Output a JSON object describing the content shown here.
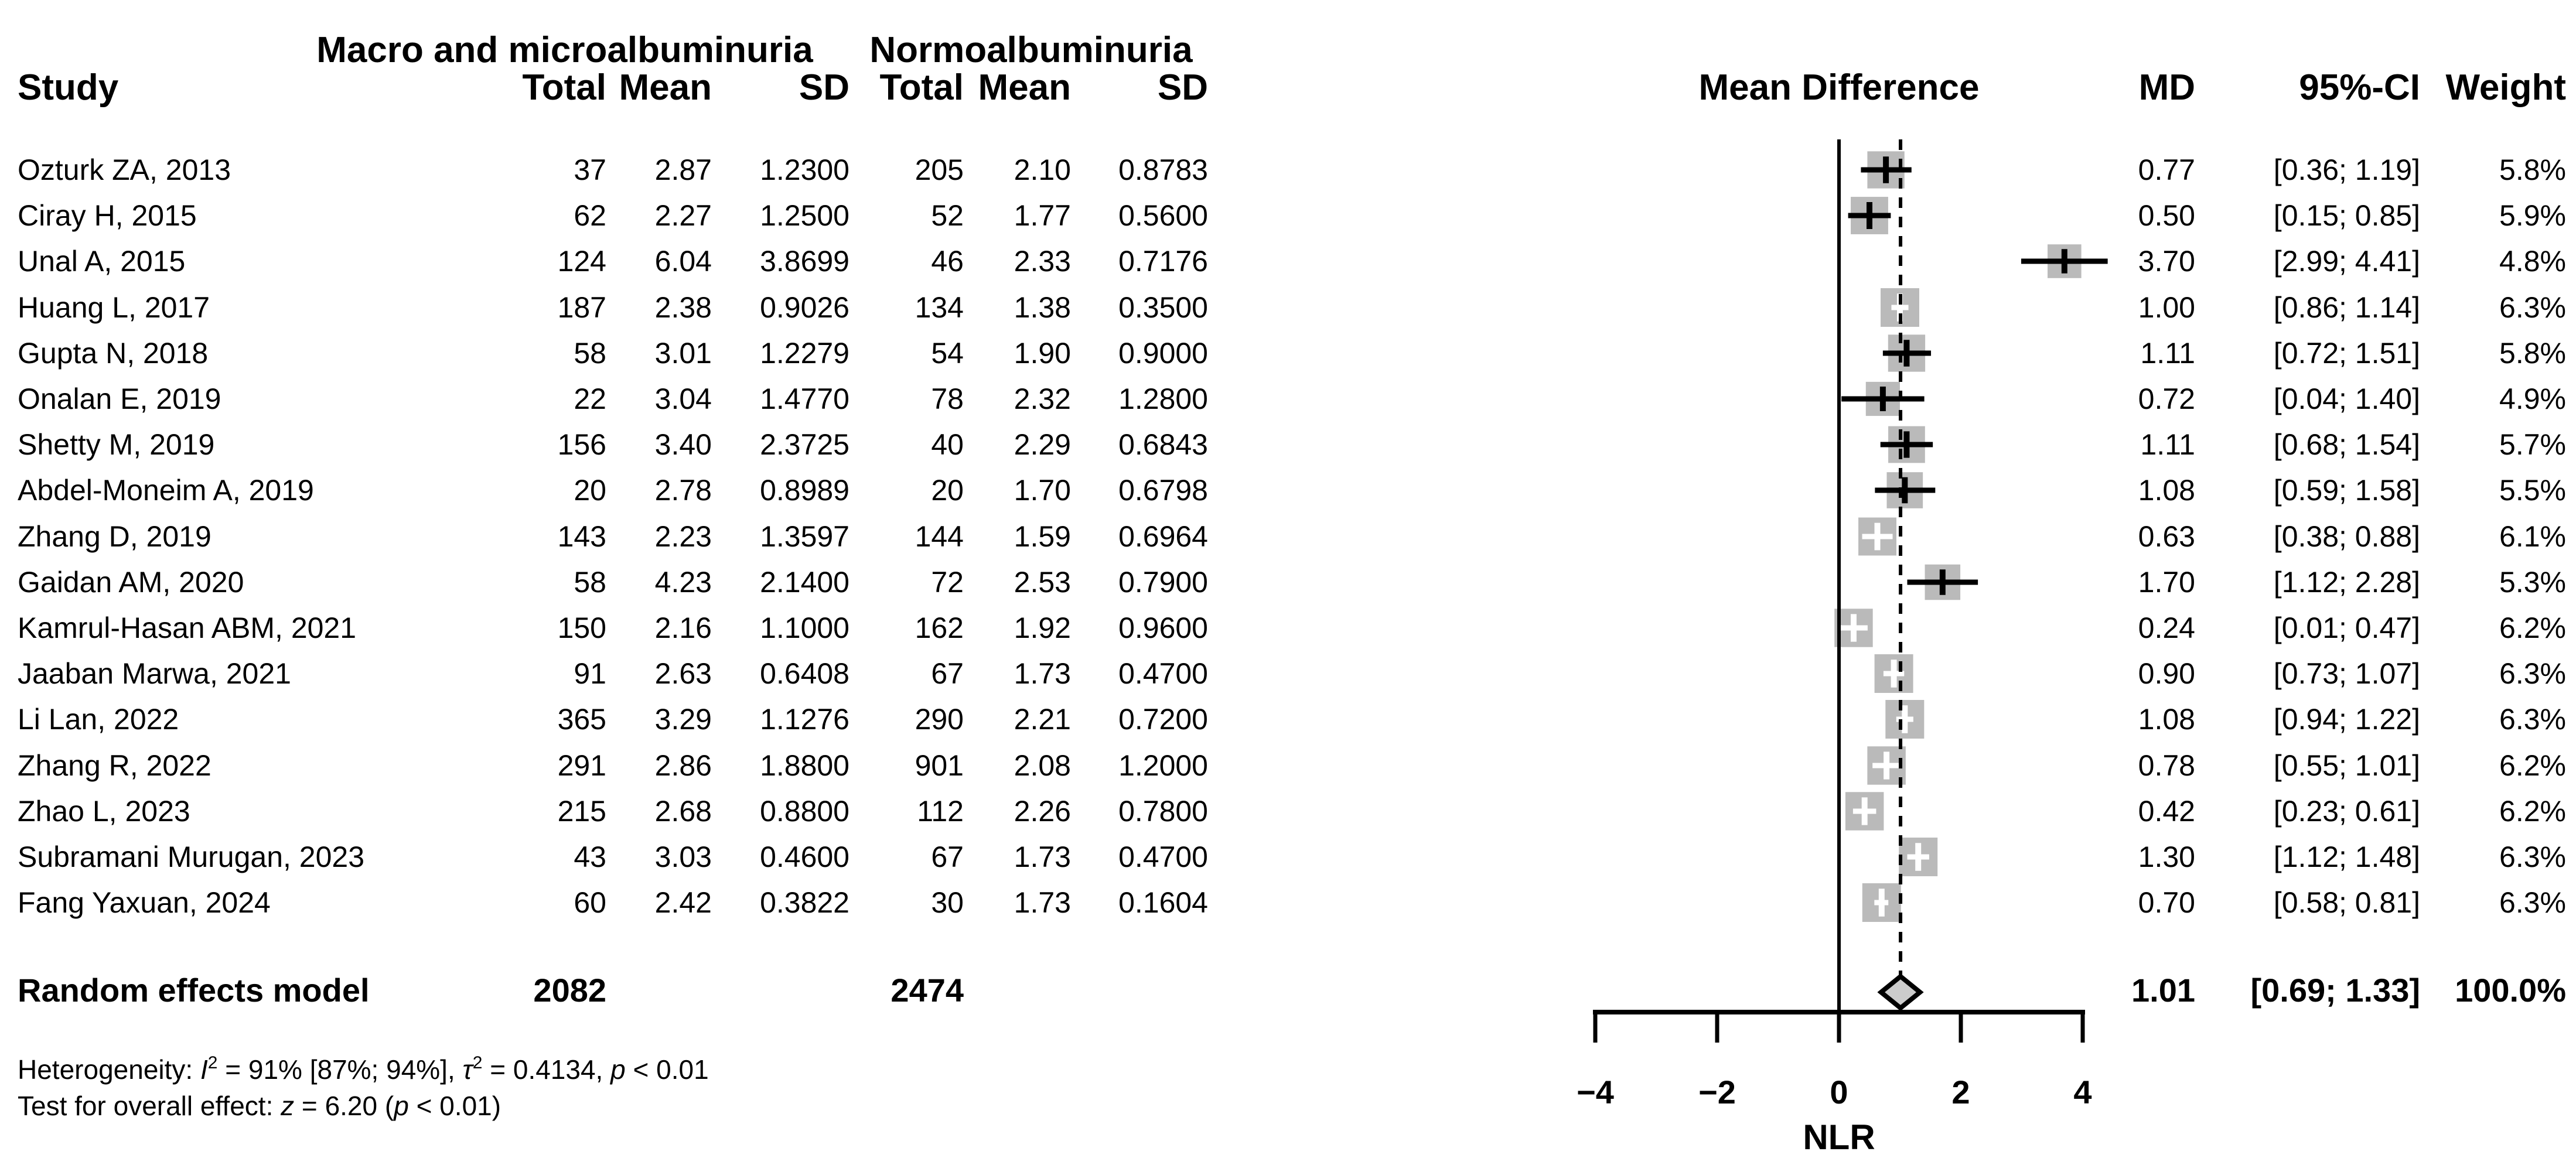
{
  "titles": {
    "group1": "Macro and microalbuminuria",
    "group2": "Normoalbuminuria"
  },
  "headers": {
    "study": "Study",
    "total1": "Total",
    "mean1": "Mean",
    "sd1": "SD",
    "total2": "Total",
    "mean2": "Mean",
    "sd2": "SD",
    "mean_difference": "Mean Difference",
    "md": "MD",
    "ci": "95%-CI",
    "weight": "Weight"
  },
  "summary_row": {
    "label": "Random effects model",
    "total1": "2082",
    "total2": "2474",
    "md_label": "1.01",
    "ci_label": "[0.69; 1.33]",
    "weight_label": "100.0%"
  },
  "heterogeneity": {
    "label": "Heterogeneity: ",
    "i": "I",
    "i_sup": "2",
    "seg1": " = 91% [87%; 94%], ",
    "tau": "τ",
    "tau_sup": "2",
    "seg2": " = 0.4134, ",
    "p": "p",
    "seg3": " < 0.01"
  },
  "overall_test": {
    "label": "Test for overall effect: ",
    "z": "z",
    "seg1": " = 6.20 (",
    "p": "p",
    "seg2": " < 0.01)"
  },
  "chart_data": {
    "type": "forest",
    "effect_measure": "Mean Difference",
    "xlabel": "NLR",
    "xlim": [
      -4,
      4
    ],
    "x_ticks": [
      -4,
      -2,
      0,
      2,
      4
    ],
    "x_tick_labels": [
      "−4",
      "−2",
      "0",
      "2",
      "4"
    ],
    "reference_line": 0,
    "overall_line": 1.01,
    "marker_color": "#bababa",
    "diamond_fill": "#cccccc",
    "studies": [
      {
        "name": "Ozturk ZA, 2013",
        "total1": "37",
        "mean1": "2.87",
        "sd1": "1.2300",
        "total2": "205",
        "mean2": "2.10",
        "sd2": "0.8783",
        "md": 0.77,
        "lo": 0.36,
        "hi": 1.19,
        "md_label": "0.77",
        "ci_label": "[0.36; 1.19]",
        "weight": 5.8,
        "weight_label": "5.8%"
      },
      {
        "name": "Ciray H, 2015",
        "total1": "62",
        "mean1": "2.27",
        "sd1": "1.2500",
        "total2": "52",
        "mean2": "1.77",
        "sd2": "0.5600",
        "md": 0.5,
        "lo": 0.15,
        "hi": 0.85,
        "md_label": "0.50",
        "ci_label": "[0.15; 0.85]",
        "weight": 5.9,
        "weight_label": "5.9%"
      },
      {
        "name": "Unal A, 2015",
        "total1": "124",
        "mean1": "6.04",
        "sd1": "3.8699",
        "total2": "46",
        "mean2": "2.33",
        "sd2": "0.7176",
        "md": 3.7,
        "lo": 2.99,
        "hi": 4.41,
        "md_label": "3.70",
        "ci_label": "[2.99; 4.41]",
        "weight": 4.8,
        "weight_label": "4.8%"
      },
      {
        "name": "Huang L, 2017",
        "total1": "187",
        "mean1": "2.38",
        "sd1": "0.9026",
        "total2": "134",
        "mean2": "1.38",
        "sd2": "0.3500",
        "md": 1.0,
        "lo": 0.86,
        "hi": 1.14,
        "md_label": "1.00",
        "ci_label": "[0.86; 1.14]",
        "weight": 6.3,
        "weight_label": "6.3%"
      },
      {
        "name": "Gupta N, 2018",
        "total1": "58",
        "mean1": "3.01",
        "sd1": "1.2279",
        "total2": "54",
        "mean2": "1.90",
        "sd2": "0.9000",
        "md": 1.11,
        "lo": 0.72,
        "hi": 1.51,
        "md_label": "1.11",
        "ci_label": "[0.72; 1.51]",
        "weight": 5.8,
        "weight_label": "5.8%"
      },
      {
        "name": "Onalan E, 2019",
        "total1": "22",
        "mean1": "3.04",
        "sd1": "1.4770",
        "total2": "78",
        "mean2": "2.32",
        "sd2": "1.2800",
        "md": 0.72,
        "lo": 0.04,
        "hi": 1.4,
        "md_label": "0.72",
        "ci_label": "[0.04; 1.40]",
        "weight": 4.9,
        "weight_label": "4.9%"
      },
      {
        "name": "Shetty M, 2019",
        "total1": "156",
        "mean1": "3.40",
        "sd1": "2.3725",
        "total2": "40",
        "mean2": "2.29",
        "sd2": "0.6843",
        "md": 1.11,
        "lo": 0.68,
        "hi": 1.54,
        "md_label": "1.11",
        "ci_label": "[0.68; 1.54]",
        "weight": 5.7,
        "weight_label": "5.7%"
      },
      {
        "name": "Abdel-Moneim A, 2019",
        "total1": "20",
        "mean1": "2.78",
        "sd1": "0.8989",
        "total2": "20",
        "mean2": "1.70",
        "sd2": "0.6798",
        "md": 1.08,
        "lo": 0.59,
        "hi": 1.58,
        "md_label": "1.08",
        "ci_label": "[0.59; 1.58]",
        "weight": 5.5,
        "weight_label": "5.5%"
      },
      {
        "name": "Zhang D, 2019",
        "total1": "143",
        "mean1": "2.23",
        "sd1": "1.3597",
        "total2": "144",
        "mean2": "1.59",
        "sd2": "0.6964",
        "md": 0.63,
        "lo": 0.38,
        "hi": 0.88,
        "md_label": "0.63",
        "ci_label": "[0.38; 0.88]",
        "weight": 6.1,
        "weight_label": "6.1%"
      },
      {
        "name": "Gaidan AM, 2020",
        "total1": "58",
        "mean1": "4.23",
        "sd1": "2.1400",
        "total2": "72",
        "mean2": "2.53",
        "sd2": "0.7900",
        "md": 1.7,
        "lo": 1.12,
        "hi": 2.28,
        "md_label": "1.70",
        "ci_label": "[1.12; 2.28]",
        "weight": 5.3,
        "weight_label": "5.3%"
      },
      {
        "name": "Kamrul-Hasan ABM, 2021",
        "total1": "150",
        "mean1": "2.16",
        "sd1": "1.1000",
        "total2": "162",
        "mean2": "1.92",
        "sd2": "0.9600",
        "md": 0.24,
        "lo": 0.01,
        "hi": 0.47,
        "md_label": "0.24",
        "ci_label": "[0.01; 0.47]",
        "weight": 6.2,
        "weight_label": "6.2%"
      },
      {
        "name": "Jaaban Marwa, 2021",
        "total1": "91",
        "mean1": "2.63",
        "sd1": "0.6408",
        "total2": "67",
        "mean2": "1.73",
        "sd2": "0.4700",
        "md": 0.9,
        "lo": 0.73,
        "hi": 1.07,
        "md_label": "0.90",
        "ci_label": "[0.73; 1.07]",
        "weight": 6.3,
        "weight_label": "6.3%"
      },
      {
        "name": "Li Lan, 2022",
        "total1": "365",
        "mean1": "3.29",
        "sd1": "1.1276",
        "total2": "290",
        "mean2": "2.21",
        "sd2": "0.7200",
        "md": 1.08,
        "lo": 0.94,
        "hi": 1.22,
        "md_label": "1.08",
        "ci_label": "[0.94; 1.22]",
        "weight": 6.3,
        "weight_label": "6.3%"
      },
      {
        "name": "Zhang R, 2022",
        "total1": "291",
        "mean1": "2.86",
        "sd1": "1.8800",
        "total2": "901",
        "mean2": "2.08",
        "sd2": "1.2000",
        "md": 0.78,
        "lo": 0.55,
        "hi": 1.01,
        "md_label": "0.78",
        "ci_label": "[0.55; 1.01]",
        "weight": 6.2,
        "weight_label": "6.2%"
      },
      {
        "name": "Zhao L, 2023",
        "total1": "215",
        "mean1": "2.68",
        "sd1": "0.8800",
        "total2": "112",
        "mean2": "2.26",
        "sd2": "0.7800",
        "md": 0.42,
        "lo": 0.23,
        "hi": 0.61,
        "md_label": "0.42",
        "ci_label": "[0.23; 0.61]",
        "weight": 6.2,
        "weight_label": "6.2%"
      },
      {
        "name": "Subramani Murugan, 2023",
        "total1": "43",
        "mean1": "3.03",
        "sd1": "0.4600",
        "total2": "67",
        "mean2": "1.73",
        "sd2": "0.4700",
        "md": 1.3,
        "lo": 1.12,
        "hi": 1.48,
        "md_label": "1.30",
        "ci_label": "[1.12; 1.48]",
        "weight": 6.3,
        "weight_label": "6.3%"
      },
      {
        "name": "Fang Yaxuan, 2024",
        "total1": "60",
        "mean1": "2.42",
        "sd1": "0.3822",
        "total2": "30",
        "mean2": "1.73",
        "sd2": "0.1604",
        "md": 0.7,
        "lo": 0.58,
        "hi": 0.81,
        "md_label": "0.70",
        "ci_label": "[0.58; 0.81]",
        "weight": 6.3,
        "weight_label": "6.3%"
      }
    ],
    "summary": {
      "md": 1.01,
      "lo": 0.69,
      "hi": 1.33,
      "weight": 100.0
    }
  }
}
